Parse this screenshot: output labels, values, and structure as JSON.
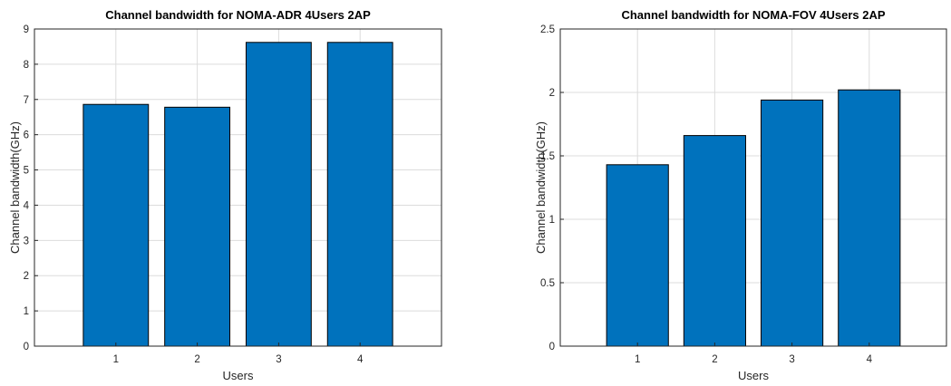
{
  "chart_data": [
    {
      "type": "bar",
      "title": "Channel bandwidth for NOMA-ADR 4Users 2AP",
      "xlabel": "Users",
      "ylabel": "Channel bandwidth(GHz)",
      "categories": [
        "1",
        "2",
        "3",
        "4"
      ],
      "values": [
        6.86,
        6.78,
        8.62,
        8.62
      ],
      "ylim": [
        0,
        9
      ],
      "xlim": [
        0,
        5
      ],
      "yticks": [
        "0",
        "1",
        "2",
        "3",
        "4",
        "5",
        "6",
        "7",
        "8",
        "9"
      ],
      "xticks": [
        "1",
        "2",
        "3",
        "4"
      ],
      "grid": true,
      "bar_color": "#0072BD"
    },
    {
      "type": "bar",
      "title": "Channel bandwidth for NOMA-FOV 4Users 2AP",
      "xlabel": "Users",
      "ylabel": "Channel bandwidth(GHz)",
      "categories": [
        "1",
        "2",
        "3",
        "4"
      ],
      "values": [
        1.43,
        1.66,
        1.94,
        2.02
      ],
      "ylim": [
        0,
        2.5
      ],
      "xlim": [
        0,
        5
      ],
      "yticks": [
        "0",
        "0.5",
        "1",
        "1.5",
        "2",
        "2.5"
      ],
      "xticks": [
        "1",
        "2",
        "3",
        "4"
      ],
      "grid": true,
      "bar_color": "#0072BD"
    }
  ]
}
